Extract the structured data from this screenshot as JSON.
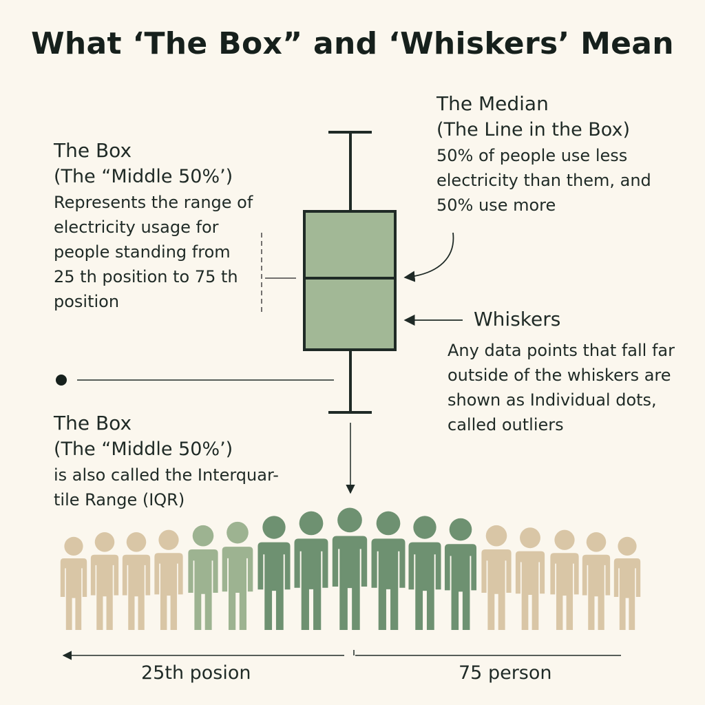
{
  "title": "What ‘The Box” and ‘Whiskers’ Mean",
  "box_block": {
    "heading": "The Box",
    "subheading": "(The “Middle 50%’)",
    "body": "Represents the range of electricity usage for people standing from 25 th position to 75 th position"
  },
  "median_block": {
    "heading": "The Median",
    "subheading": "(The Line in the Box)",
    "body": "50% of people use less electricity than them, and 50% use more"
  },
  "whiskers_block": {
    "heading": "Whiskers",
    "body": "Any data points that fall far outside of the whiskers are shown as Individual dots, called outliers"
  },
  "iqr_block": {
    "heading": "The Box",
    "subheading": "(The “Middle 50%’)",
    "body": "is also called the Interquar-tile Range (IQR)"
  },
  "captions": {
    "left": "25th posion",
    "right": "75 person"
  },
  "colors": {
    "box_fill": "#a2b896",
    "box_stroke": "#1f2a26",
    "beige": "#d9c6a6",
    "light_green": "#9db391",
    "dark_green": "#6e9171"
  },
  "people": [
    {
      "tone": "beige"
    },
    {
      "tone": "beige"
    },
    {
      "tone": "beige"
    },
    {
      "tone": "beige"
    },
    {
      "tone": "light_green"
    },
    {
      "tone": "light_green"
    },
    {
      "tone": "dark_green"
    },
    {
      "tone": "dark_green"
    },
    {
      "tone": "dark_green"
    },
    {
      "tone": "dark_green"
    },
    {
      "tone": "dark_green"
    },
    {
      "tone": "dark_green"
    },
    {
      "tone": "beige"
    },
    {
      "tone": "beige"
    },
    {
      "tone": "beige"
    },
    {
      "tone": "beige"
    },
    {
      "tone": "beige"
    }
  ]
}
